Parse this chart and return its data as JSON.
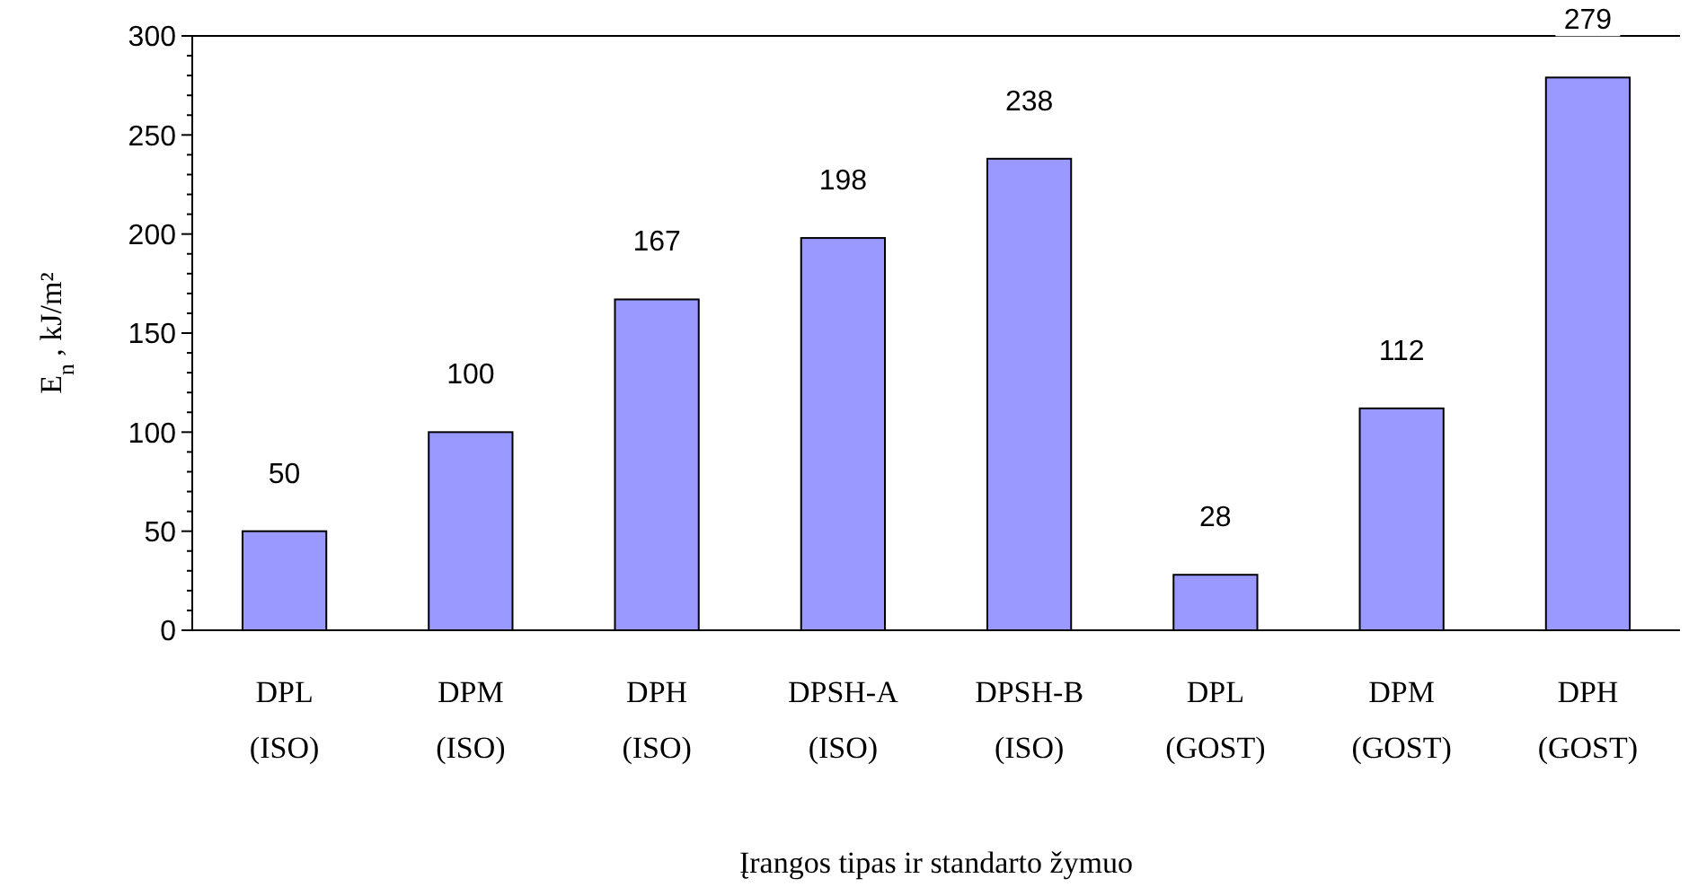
{
  "chart_data": {
    "type": "bar",
    "xlabel": "Įrangos tipas ir standarto žymuo",
    "ylabel": "E$_{n}$ , kJ/m²",
    "categories": [
      "DPL\n(ISO)",
      "DPM\n(ISO)",
      "DPH\n(ISO)",
      "DPSH-A\n(ISO)",
      "DPSH-B\n(ISO)",
      "DPL\n(GOST)",
      "DPM\n(GOST)",
      "DPH\n(GOST)"
    ],
    "values": [
      50,
      100,
      167,
      198,
      238,
      28,
      112,
      279
    ],
    "color": "#9999ff",
    "ylim": [
      0,
      300
    ],
    "yticks": [
      0,
      {
        "value": 10,
        "label": null
      },
      {
        "value": 20,
        "label": null
      },
      {
        "value": 30,
        "label": null
      },
      {
        "value": 40,
        "label": null
      },
      50,
      {
        "value": 60,
        "label": null
      },
      {
        "value": 70,
        "label": null
      },
      {
        "value": 80,
        "label": null
      },
      {
        "value": 90,
        "label": null
      },
      100,
      {
        "value": 110,
        "label": null
      },
      {
        "value": 120,
        "label": null
      },
      {
        "value": 130,
        "label": null
      },
      {
        "value": 140,
        "label": null
      },
      150,
      {
        "value": 160,
        "label": null
      },
      {
        "value": 170,
        "label": null
      },
      {
        "value": 180,
        "label": null
      },
      {
        "value": 190,
        "label": null
      },
      200,
      {
        "value": 210,
        "label": null
      },
      {
        "value": 220,
        "label": null
      },
      {
        "value": 230,
        "label": null
      },
      {
        "value": 240,
        "label": null
      },
      250,
      {
        "value": 260,
        "label": null
      },
      {
        "value": 270,
        "label": null
      },
      {
        "value": 280,
        "label": null
      },
      {
        "value": 290,
        "label": null
      },
      300
    ],
    "data_labels": true
  }
}
